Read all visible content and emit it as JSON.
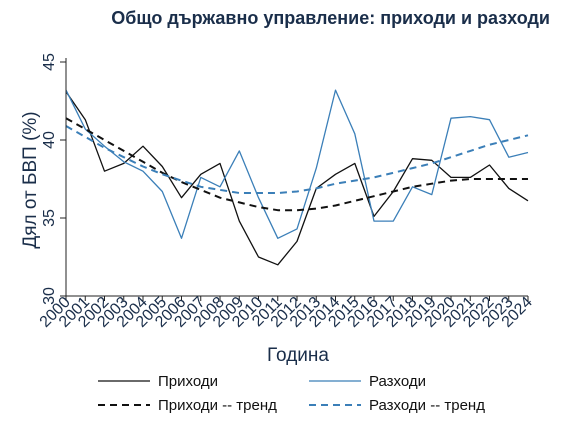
{
  "chart_data": {
    "type": "line",
    "title": "Общо държавно управление: приходи и разходи",
    "xlabel": "Година",
    "ylabel": "Дял от БВП (%)",
    "ylim": [
      30,
      45
    ],
    "yticks": [
      "30",
      "35",
      "40",
      "45"
    ],
    "grid": false,
    "legend_position": "bottom",
    "x": [
      "2000",
      "2001",
      "2002",
      "2003",
      "2004",
      "2005",
      "2006",
      "2007",
      "2008",
      "2009",
      "2010",
      "2011",
      "2012",
      "2013",
      "2014",
      "2015",
      "2016",
      "2017",
      "2018",
      "2019",
      "2020",
      "2021",
      "2022",
      "2023",
      "2024"
    ],
    "series": [
      {
        "name": "Приходи",
        "color": "#111111",
        "dash": "solid",
        "values": [
          43.1,
          41.3,
          38.0,
          38.5,
          39.6,
          38.3,
          36.3,
          37.8,
          38.5,
          34.8,
          32.5,
          32.0,
          33.5,
          36.9,
          37.8,
          38.5,
          35.1,
          36.7,
          38.8,
          38.7,
          37.6,
          37.6,
          38.4,
          36.9,
          36.1
        ]
      },
      {
        "name": "Разходи",
        "color": "#3b7fb8",
        "dash": "solid",
        "values": [
          43.2,
          40.7,
          39.6,
          38.6,
          38.0,
          36.7,
          33.7,
          37.6,
          37.0,
          39.3,
          36.3,
          33.7,
          34.3,
          38.2,
          43.2,
          40.4,
          34.8,
          34.8,
          37.0,
          36.5,
          41.4,
          41.5,
          41.3,
          38.9,
          39.2
        ]
      },
      {
        "name": "Приходи -- тренд",
        "color": "#111111",
        "dash": "dashed",
        "values": [
          41.4,
          40.7,
          40.0,
          39.3,
          38.6,
          37.9,
          37.3,
          36.8,
          36.3,
          36.0,
          35.7,
          35.5,
          35.5,
          35.6,
          35.8,
          36.1,
          36.4,
          36.7,
          37.0,
          37.2,
          37.4,
          37.5,
          37.5,
          37.5,
          37.5
        ]
      },
      {
        "name": "Разходи -- тренд",
        "color": "#3b7fb8",
        "dash": "dashed",
        "values": [
          40.9,
          40.2,
          39.5,
          38.9,
          38.3,
          37.8,
          37.4,
          37.0,
          36.8,
          36.6,
          36.6,
          36.6,
          36.7,
          36.9,
          37.2,
          37.4,
          37.6,
          37.9,
          38.2,
          38.5,
          38.9,
          39.3,
          39.7,
          40.0,
          40.3
        ]
      }
    ]
  }
}
